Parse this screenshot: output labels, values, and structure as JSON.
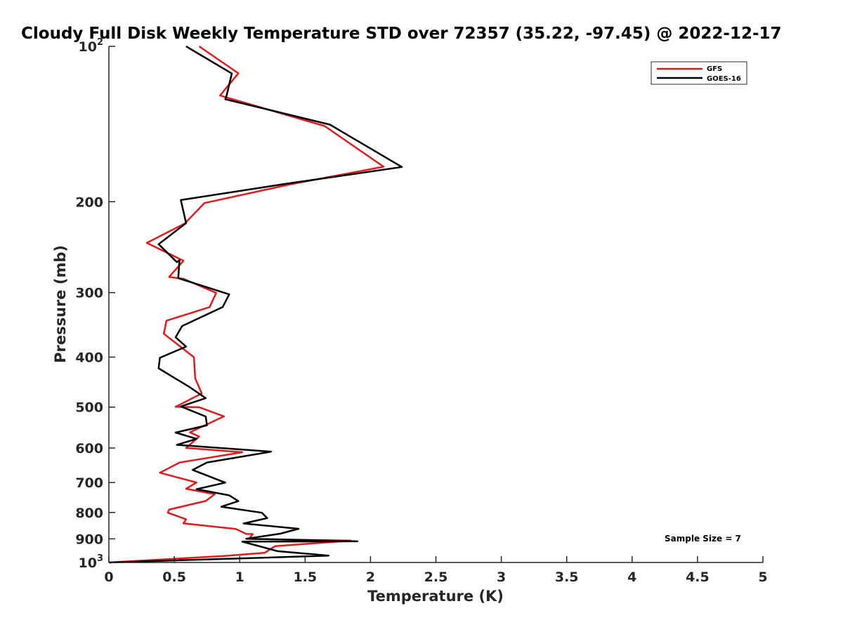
{
  "chart_data": {
    "type": "line",
    "title": "Cloudy Full Disk Weekly Temperature STD over 72357 (35.22, -97.45) @ 2022-12-17",
    "xlabel": "Temperature (K)",
    "ylabel": "Pressure (mb)",
    "xlim": [
      0,
      5
    ],
    "ylim": [
      100,
      1000
    ],
    "y_scale": "log",
    "y_reversed": true,
    "grid": false,
    "legend_position": "top-right",
    "x_ticks": [
      {
        "value": 0,
        "label": "0"
      },
      {
        "value": 0.5,
        "label": "0.5"
      },
      {
        "value": 1,
        "label": "1"
      },
      {
        "value": 1.5,
        "label": "1.5"
      },
      {
        "value": 2,
        "label": "2"
      },
      {
        "value": 2.5,
        "label": "2.5"
      },
      {
        "value": 3,
        "label": "3"
      },
      {
        "value": 3.5,
        "label": "3.5"
      },
      {
        "value": 4,
        "label": "4"
      },
      {
        "value": 4.5,
        "label": "4.5"
      },
      {
        "value": 5,
        "label": "5"
      }
    ],
    "y_ticks": [
      {
        "value": 100,
        "base": "10",
        "exp": "2"
      },
      {
        "value": 200,
        "base": "200",
        "exp": ""
      },
      {
        "value": 300,
        "base": "300",
        "exp": ""
      },
      {
        "value": 400,
        "base": "400",
        "exp": ""
      },
      {
        "value": 500,
        "base": "500",
        "exp": ""
      },
      {
        "value": 600,
        "base": "600",
        "exp": ""
      },
      {
        "value": 700,
        "base": "700",
        "exp": ""
      },
      {
        "value": 800,
        "base": "800",
        "exp": ""
      },
      {
        "value": 900,
        "base": "900",
        "exp": ""
      },
      {
        "value": 1000,
        "base": "10",
        "exp": "3"
      }
    ],
    "annotation": "Sample Size = 7",
    "series": [
      {
        "name": "GFS",
        "color": "#e31a1c",
        "points": [
          [
            0.69,
            100
          ],
          [
            0.99,
            112.8
          ],
          [
            0.85,
            124.5
          ],
          [
            0.91,
            125.8
          ],
          [
            1.65,
            142.7
          ],
          [
            2.1,
            171.1
          ],
          [
            1.39,
            185
          ],
          [
            0.73,
            201.2
          ],
          [
            0.58,
            220.4
          ],
          [
            0.29,
            240.3
          ],
          [
            0.57,
            260.2
          ],
          [
            0.46,
            279.8
          ],
          [
            0.57,
            282.1
          ],
          [
            0.82,
            300.4
          ],
          [
            0.77,
            320
          ],
          [
            0.44,
            340.1
          ],
          [
            0.42,
            360.5
          ],
          [
            0.65,
            400.1
          ],
          [
            0.66,
            440
          ],
          [
            0.71,
            470.5
          ],
          [
            0.51,
            499.3
          ],
          [
            0.69,
            500.2
          ],
          [
            0.88,
            521
          ],
          [
            0.62,
            559.5
          ],
          [
            0.69,
            570.1
          ],
          [
            0.59,
            600
          ],
          [
            1.02,
            611.5
          ],
          [
            0.54,
            640.4
          ],
          [
            0.39,
            670
          ],
          [
            0.67,
            700
          ],
          [
            0.59,
            719.7
          ],
          [
            0.81,
            737.5
          ],
          [
            0.74,
            760.1
          ],
          [
            0.46,
            789.9
          ],
          [
            0.45,
            800.8
          ],
          [
            0.59,
            824.5
          ],
          [
            0.57,
            840
          ],
          [
            0.97,
            861.1
          ],
          [
            1.05,
            879.9
          ],
          [
            1.1,
            880.9
          ],
          [
            1.07,
            900
          ],
          [
            1.85,
            907.2
          ],
          [
            1.27,
            930
          ],
          [
            1.19,
            957.9
          ],
          [
            0.89,
            971
          ],
          [
            0,
            1000
          ]
        ]
      },
      {
        "name": "GOES-16",
        "color": "#000000",
        "points": [
          [
            0.59,
            100
          ],
          [
            0.94,
            112.9
          ],
          [
            0.9,
            124.5
          ],
          [
            0.89,
            126.6
          ],
          [
            1.69,
            141.8
          ],
          [
            2.24,
            171.3
          ],
          [
            1.33,
            185
          ],
          [
            0.55,
            198.5
          ],
          [
            0.59,
            220
          ],
          [
            0.38,
            241.7
          ],
          [
            0.52,
            261.9
          ],
          [
            0.54,
            259.6
          ],
          [
            0.53,
            281.3
          ],
          [
            0.92,
            302.4
          ],
          [
            0.87,
            319.9
          ],
          [
            0.56,
            348.1
          ],
          [
            0.51,
            366.2
          ],
          [
            0.59,
            381.7
          ],
          [
            0.39,
            401.3
          ],
          [
            0.38,
            420.6
          ],
          [
            0.61,
            456.1
          ],
          [
            0.74,
            480.4
          ],
          [
            0.55,
            498.6
          ],
          [
            0.74,
            521.3
          ],
          [
            0.75,
            542.2
          ],
          [
            0.51,
            560.2
          ],
          [
            0.67,
            575.9
          ],
          [
            0.52,
            591.7
          ],
          [
            1.24,
            610
          ],
          [
            0.75,
            640.2
          ],
          [
            0.64,
            661.7
          ],
          [
            0.89,
            700.4
          ],
          [
            0.67,
            721
          ],
          [
            0.92,
            741.3
          ],
          [
            0.99,
            760.6
          ],
          [
            0.86,
            779.9
          ],
          [
            1.17,
            801.2
          ],
          [
            1.21,
            820.5
          ],
          [
            1.03,
            840.4
          ],
          [
            1.45,
            860.4
          ],
          [
            1.31,
            879.4
          ],
          [
            1.05,
            899.5
          ],
          [
            1.9,
            910
          ],
          [
            1.02,
            911.1
          ],
          [
            1.29,
            950.8
          ],
          [
            1.68,
            970
          ],
          [
            0,
            1000
          ]
        ]
      }
    ]
  }
}
